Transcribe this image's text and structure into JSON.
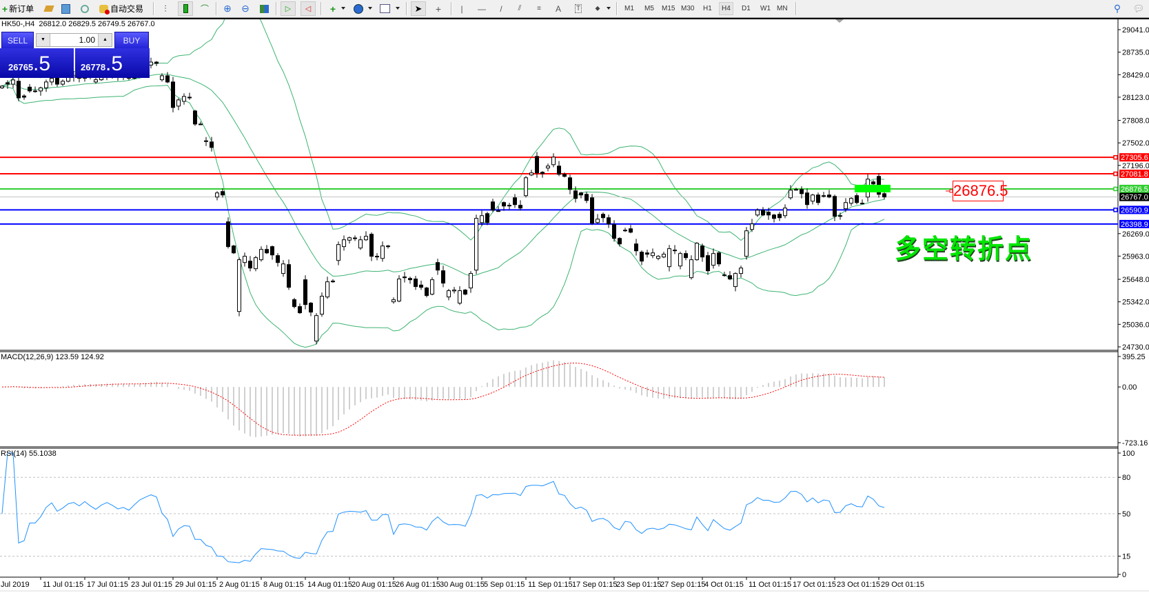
{
  "toolbar": {
    "new_order_label": "新订单",
    "auto_trading_label": "自动交易",
    "timeframes": [
      "M1",
      "M5",
      "M15",
      "M30",
      "H1",
      "H4",
      "D1",
      "W1",
      "MN"
    ],
    "active_timeframe": "H4",
    "icons": [
      "new-order-icon",
      "market-watch-icon",
      "data-window-icon",
      "signals-icon",
      "auto-trading-icon",
      "bar-chart-icon",
      "candlestick-icon",
      "line-chart-icon",
      "zoom-in-icon",
      "zoom-out-icon",
      "tile-windows-icon",
      "autoscroll-icon",
      "chart-shift-icon",
      "indicators-icon",
      "periods-icon",
      "templates-icon",
      "cursor-icon",
      "crosshair-icon",
      "vertical-line-icon",
      "horizontal-line-icon",
      "trendline-icon",
      "equidistant-channel-icon",
      "fibonacci-icon",
      "text-icon",
      "text-label-icon",
      "arrows-icon",
      "search-icon",
      "chat-icon"
    ]
  },
  "chart": {
    "symbol_info": "HK50-,H4  26812.0 26829.5 26749.5 26767.0"
  },
  "trade_panel": {
    "sell_label": "SELL",
    "buy_label": "BUY",
    "lot": "1.00",
    "sell_price_main": "26765",
    "sell_price_frac": ".5",
    "buy_price_main": "26778",
    "buy_price_frac": ".5"
  },
  "annotation": {
    "text": "多空转折点",
    "price_label": "26876.5",
    "highlight_color": "#00ff00"
  },
  "chart_data": {
    "type": "candlestick",
    "price_range": [
      24730.0,
      29041.0
    ],
    "price_ticks": [
      "29041.0",
      "28735.0",
      "28429.0",
      "28123.0",
      "27808.0",
      "27502.0",
      "27196.0",
      "26269.0",
      "25963.0",
      "25648.0",
      "25342.0",
      "25036.0",
      "24730.0"
    ],
    "bid_line": {
      "value": 26767.0,
      "label": "26767.0",
      "color": "#000000"
    },
    "hlines": [
      {
        "value": 27305.6,
        "label": "27305.6",
        "color": "#ff0000"
      },
      {
        "value": 27081.8,
        "label": "27081.8",
        "color": "#ff0000"
      },
      {
        "value": 26876.5,
        "label": "26876.5",
        "color": "#32cd32"
      },
      {
        "value": 26590.9,
        "label": "26590.9",
        "color": "#0000ff"
      },
      {
        "value": 26398.9,
        "label": "26398.9",
        "color": "#0000ff"
      }
    ],
    "bands_color": "#3cb371",
    "candles_open_close": [
      [
        28250,
        28273
      ],
      [
        28320,
        28301
      ],
      [
        28300,
        28358
      ],
      [
        28340,
        28114
      ],
      [
        28140,
        28123
      ],
      [
        28260,
        28208
      ],
      [
        28200,
        28208
      ],
      [
        28208,
        28250
      ],
      [
        28250,
        28330
      ],
      [
        28330,
        28380
      ],
      [
        28380,
        28300
      ],
      [
        28300,
        28340
      ],
      [
        28340,
        28400
      ],
      [
        28400,
        28420
      ],
      [
        28420,
        28380
      ],
      [
        28380,
        28450
      ],
      [
        28450,
        28400
      ],
      [
        28330,
        28360
      ],
      [
        28360,
        28420
      ],
      [
        28420,
        28460
      ],
      [
        28460,
        28430
      ],
      [
        28430,
        28390
      ],
      [
        28390,
        28410
      ],
      [
        28410,
        28380
      ],
      [
        28380,
        28450
      ],
      [
        28450,
        28520
      ],
      [
        28520,
        28560
      ],
      [
        28560,
        28600
      ],
      [
        28600,
        28582
      ],
      [
        28360,
        28414
      ],
      [
        28414,
        28329
      ],
      [
        28330,
        27983
      ],
      [
        28002,
        28086
      ],
      [
        28067,
        28133
      ],
      [
        28123,
        28123
      ],
      [
        27936,
        27758
      ],
      [
        27758,
        27758
      ],
      [
        27530,
        27524
      ],
      [
        27515,
        27440
      ],
      [
        26766,
        26822
      ],
      [
        26841,
        26794
      ],
      [
        26429,
        26092
      ],
      [
        26101,
        26007
      ],
      [
        25211,
        25914
      ],
      [
        25876,
        25961
      ],
      [
        25895,
        25801
      ],
      [
        25792,
        25942
      ],
      [
        25914,
        26054
      ],
      [
        26054,
        26007
      ],
      [
        26092,
        25979
      ],
      [
        25970,
        25876
      ],
      [
        25727,
        25857
      ],
      [
        25848,
        25539
      ],
      [
        25371,
        25277
      ],
      [
        25277,
        25193
      ],
      [
        25642,
        25305
      ],
      [
        25324,
        25202
      ],
      [
        24809,
        25155
      ],
      [
        25174,
        25418
      ],
      [
        25408,
        25614
      ],
      [
        25614,
        25624
      ],
      [
        25904,
        26120
      ],
      [
        26092,
        26185
      ],
      [
        26180,
        26213
      ],
      [
        26210,
        26204
      ],
      [
        26073,
        26185
      ],
      [
        26185,
        26232
      ],
      [
        26260,
        25961
      ],
      [
        25961,
        25961
      ],
      [
        25932,
        26101
      ],
      [
        26101,
        26101
      ],
      [
        25342,
        25370
      ],
      [
        25352,
        25652
      ],
      [
        25680,
        25670
      ],
      [
        25660,
        25642
      ],
      [
        25652,
        25549
      ],
      [
        25570,
        25539
      ],
      [
        25530,
        25427
      ],
      [
        25446,
        25642
      ],
      [
        25876,
        25773
      ],
      [
        25764,
        25596
      ],
      [
        25408,
        25493
      ],
      [
        25490,
        25502
      ],
      [
        25324,
        25493
      ],
      [
        25502,
        25446
      ],
      [
        25530,
        25727
      ],
      [
        25773,
        26476
      ],
      [
        26419,
        26513
      ],
      [
        26541,
        26419
      ],
      [
        26700,
        26588
      ],
      [
        26579,
        26579
      ],
      [
        26691,
        26644
      ],
      [
        26654,
        26654
      ],
      [
        26756,
        26663
      ],
      [
        26654,
        26616
      ],
      [
        26785,
        27028
      ],
      [
        27066,
        27094
      ],
      [
        27318,
        27094
      ],
      [
        27103,
        27084
      ],
      [
        27160,
        27187
      ],
      [
        27206,
        27309
      ],
      [
        27187,
        27075
      ],
      [
        27075,
        27047
      ],
      [
        27028,
        26869
      ],
      [
        26850,
        26747
      ],
      [
        26822,
        26794
      ],
      [
        26803,
        26719
      ],
      [
        26756,
        26410
      ],
      [
        26419,
        26466
      ],
      [
        26532,
        26485
      ],
      [
        26485,
        26401
      ],
      [
        26391,
        26204
      ],
      [
        26204,
        26129
      ],
      [
        26316,
        26316
      ],
      [
        26335,
        26288
      ],
      [
        26129,
        26035
      ],
      [
        26017,
        25895
      ],
      [
        26007,
        25989
      ],
      [
        25970,
        26007
      ],
      [
        25932,
        25961
      ],
      [
        25951,
        25989
      ],
      [
        25820,
        26064
      ],
      [
        26045,
        26045
      ],
      [
        25829,
        25998
      ],
      [
        25998,
        25942
      ],
      [
        25670,
        25914
      ],
      [
        25914,
        26138
      ],
      [
        26101,
        25951
      ],
      [
        25970,
        25764
      ],
      [
        25839,
        25998
      ],
      [
        26007,
        25857
      ],
      [
        25708,
        25708
      ],
      [
        25698,
        25652
      ],
      [
        25549,
        25727
      ],
      [
        25727,
        25801
      ],
      [
        25961,
        26307
      ],
      [
        26326,
        26401
      ],
      [
        26522,
        26588
      ],
      [
        26588,
        26522
      ],
      [
        26560,
        26522
      ],
      [
        26522,
        26475
      ],
      [
        26532,
        26485
      ],
      [
        26513,
        26616
      ],
      [
        26756,
        26859
      ],
      [
        26869,
        26869
      ],
      [
        26869,
        26812
      ],
      [
        26822,
        26663
      ],
      [
        26710,
        26794
      ],
      [
        26794,
        26691
      ],
      [
        26785,
        26785
      ],
      [
        26794,
        26766
      ],
      [
        26775,
        26504
      ],
      [
        26513,
        26513
      ],
      [
        26607,
        26691
      ],
      [
        26682,
        26747
      ],
      [
        26785,
        26691
      ],
      [
        26682,
        26682
      ],
      [
        26766,
        27009
      ],
      [
        26972,
        26944
      ],
      [
        27047,
        26803
      ],
      [
        26812,
        26767
      ]
    ],
    "time_labels": [
      "Jul 2019",
      "11 Jul 01:15",
      "17 Jul 01:15",
      "23 Jul 01:15",
      "29 Jul 01:15",
      "2 Aug 01:15",
      "8 Aug 01:15",
      "14 Aug 01:15",
      "20 Aug 01:15",
      "26 Aug 01:15",
      "30 Aug 01:15",
      "5 Sep 01:15",
      "11 Sep 01:15",
      "17 Sep 01:15",
      "23 Sep 01:15",
      "27 Sep 01:15",
      "4 Oct 01:15",
      "11 Oct 01:15",
      "17 Oct 01:15",
      "23 Oct 01:15",
      "29 Oct 01:15"
    ],
    "macd": {
      "label": "MACD(12,26,9) 123.59 124.92",
      "range": [
        -723.16,
        395.25
      ],
      "ticks": [
        "395.25",
        "0.00",
        "-723.16"
      ],
      "histogram_color": "#c0c0c0",
      "signal_color": "#ff0000"
    },
    "rsi": {
      "label": "RSI(14) 55.1038",
      "range": [
        0,
        100
      ],
      "ticks": [
        "100",
        "80",
        "50",
        "15",
        "0"
      ],
      "levels": [
        80,
        50,
        15
      ],
      "color": "#1e90ff"
    }
  }
}
